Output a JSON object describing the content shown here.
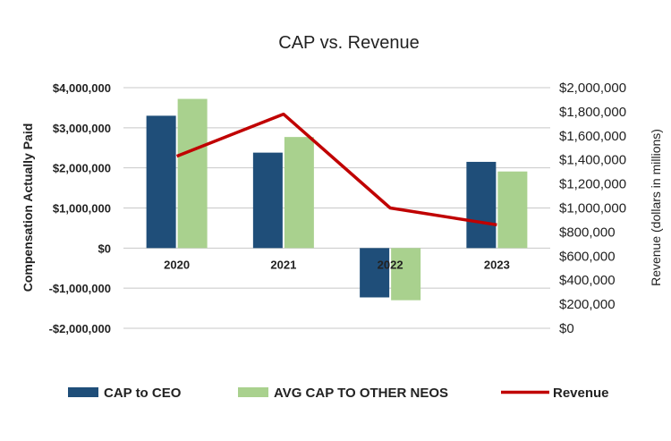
{
  "chart_data": {
    "type": "bar",
    "title": "CAP vs. Revenue",
    "categories": [
      "2020",
      "2021",
      "2022",
      "2023"
    ],
    "series": [
      {
        "name": "CAP to CEO",
        "type": "bar",
        "axis": "left",
        "color": "#1F4E79",
        "values": [
          3300000,
          2380000,
          -1230000,
          2150000
        ]
      },
      {
        "name": "AVG CAP TO OTHER NEOS",
        "type": "bar",
        "axis": "left",
        "color": "#A9D18E",
        "values": [
          3720000,
          2770000,
          -1300000,
          1910000
        ]
      },
      {
        "name": "Revenue",
        "type": "line",
        "axis": "right",
        "color": "#C00000",
        "values": [
          1430000,
          1780000,
          1000000,
          860000
        ]
      }
    ],
    "ylabel": "Compensation Actually Paid",
    "y2label": "Revenue (dollars in millions)",
    "ylim": [
      -2000000,
      4000000
    ],
    "y2lim": [
      0,
      2000000
    ],
    "yticks": [
      {
        "value": 4000000,
        "label": "$4,000,000"
      },
      {
        "value": 3000000,
        "label": "$3,000,000"
      },
      {
        "value": 2000000,
        "label": "$2,000,000"
      },
      {
        "value": 1000000,
        "label": "$1,000,000"
      },
      {
        "value": 0,
        "label": "$0"
      },
      {
        "value": -1000000,
        "label": "-$1,000,000"
      },
      {
        "value": -2000000,
        "label": "-$2,000,000"
      }
    ],
    "y2ticks": [
      {
        "value": 2000000,
        "label": "$2,000,000"
      },
      {
        "value": 1800000,
        "label": "$1,800,000"
      },
      {
        "value": 1600000,
        "label": "$1,600,000"
      },
      {
        "value": 1400000,
        "label": "$1,400,000"
      },
      {
        "value": 1200000,
        "label": "$1,200,000"
      },
      {
        "value": 1000000,
        "label": "$1,000,000"
      },
      {
        "value": 800000,
        "label": "$800,000"
      },
      {
        "value": 600000,
        "label": "$600,000"
      },
      {
        "value": 400000,
        "label": "$400,000"
      },
      {
        "value": 200000,
        "label": "$200,000"
      },
      {
        "value": 0,
        "label": "$0"
      }
    ],
    "grid": true,
    "legend_position": "bottom"
  }
}
